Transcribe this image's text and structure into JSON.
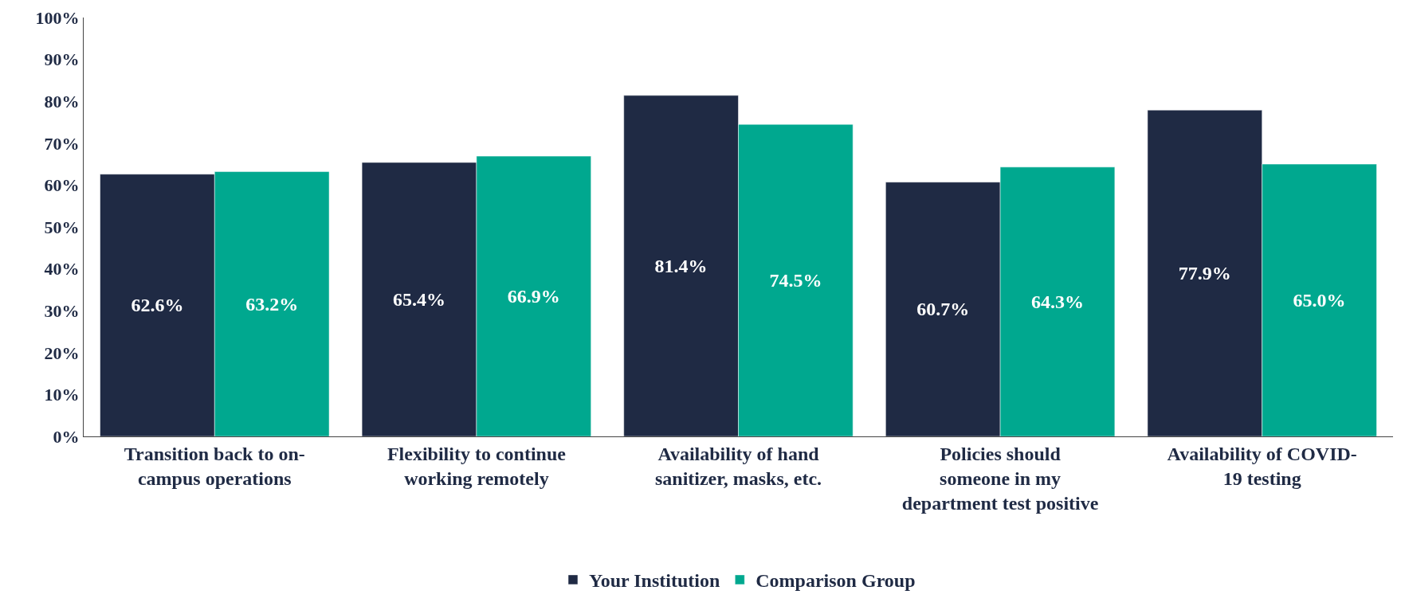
{
  "chart_data": {
    "type": "bar",
    "categories": [
      "Transition back to on-\ncampus operations",
      "Flexibility to continue\nworking remotely",
      "Availability of hand\nsanitizer, masks, etc.",
      "Policies should\nsomeone in my\ndepartment test positive",
      "Availability of COVID-\n19 testing"
    ],
    "series": [
      {
        "name": "Your Institution",
        "color": "#1f2a44",
        "values": [
          62.6,
          65.4,
          81.4,
          60.7,
          77.9
        ],
        "value_labels": [
          "62.6%",
          "65.4%",
          "81.4%",
          "60.7%",
          "77.9%"
        ]
      },
      {
        "name": "Comparison Group",
        "color": "#00a88f",
        "values": [
          63.2,
          66.9,
          74.5,
          64.3,
          65.0
        ],
        "value_labels": [
          "63.2%",
          "66.9%",
          "74.5%",
          "64.3%",
          "65.0%"
        ]
      }
    ],
    "ylim": [
      0,
      100
    ],
    "yticks": [
      {
        "value": 0,
        "label": "0%"
      },
      {
        "value": 10,
        "label": "10%"
      },
      {
        "value": 20,
        "label": "20%"
      },
      {
        "value": 30,
        "label": "30%"
      },
      {
        "value": 40,
        "label": "40%"
      },
      {
        "value": 50,
        "label": "50%"
      },
      {
        "value": 60,
        "label": "60%"
      },
      {
        "value": 70,
        "label": "70%"
      },
      {
        "value": 80,
        "label": "80%"
      },
      {
        "value": 90,
        "label": "90%"
      },
      {
        "value": 100,
        "label": "100%"
      }
    ],
    "grid": false,
    "legend": "bottom"
  }
}
